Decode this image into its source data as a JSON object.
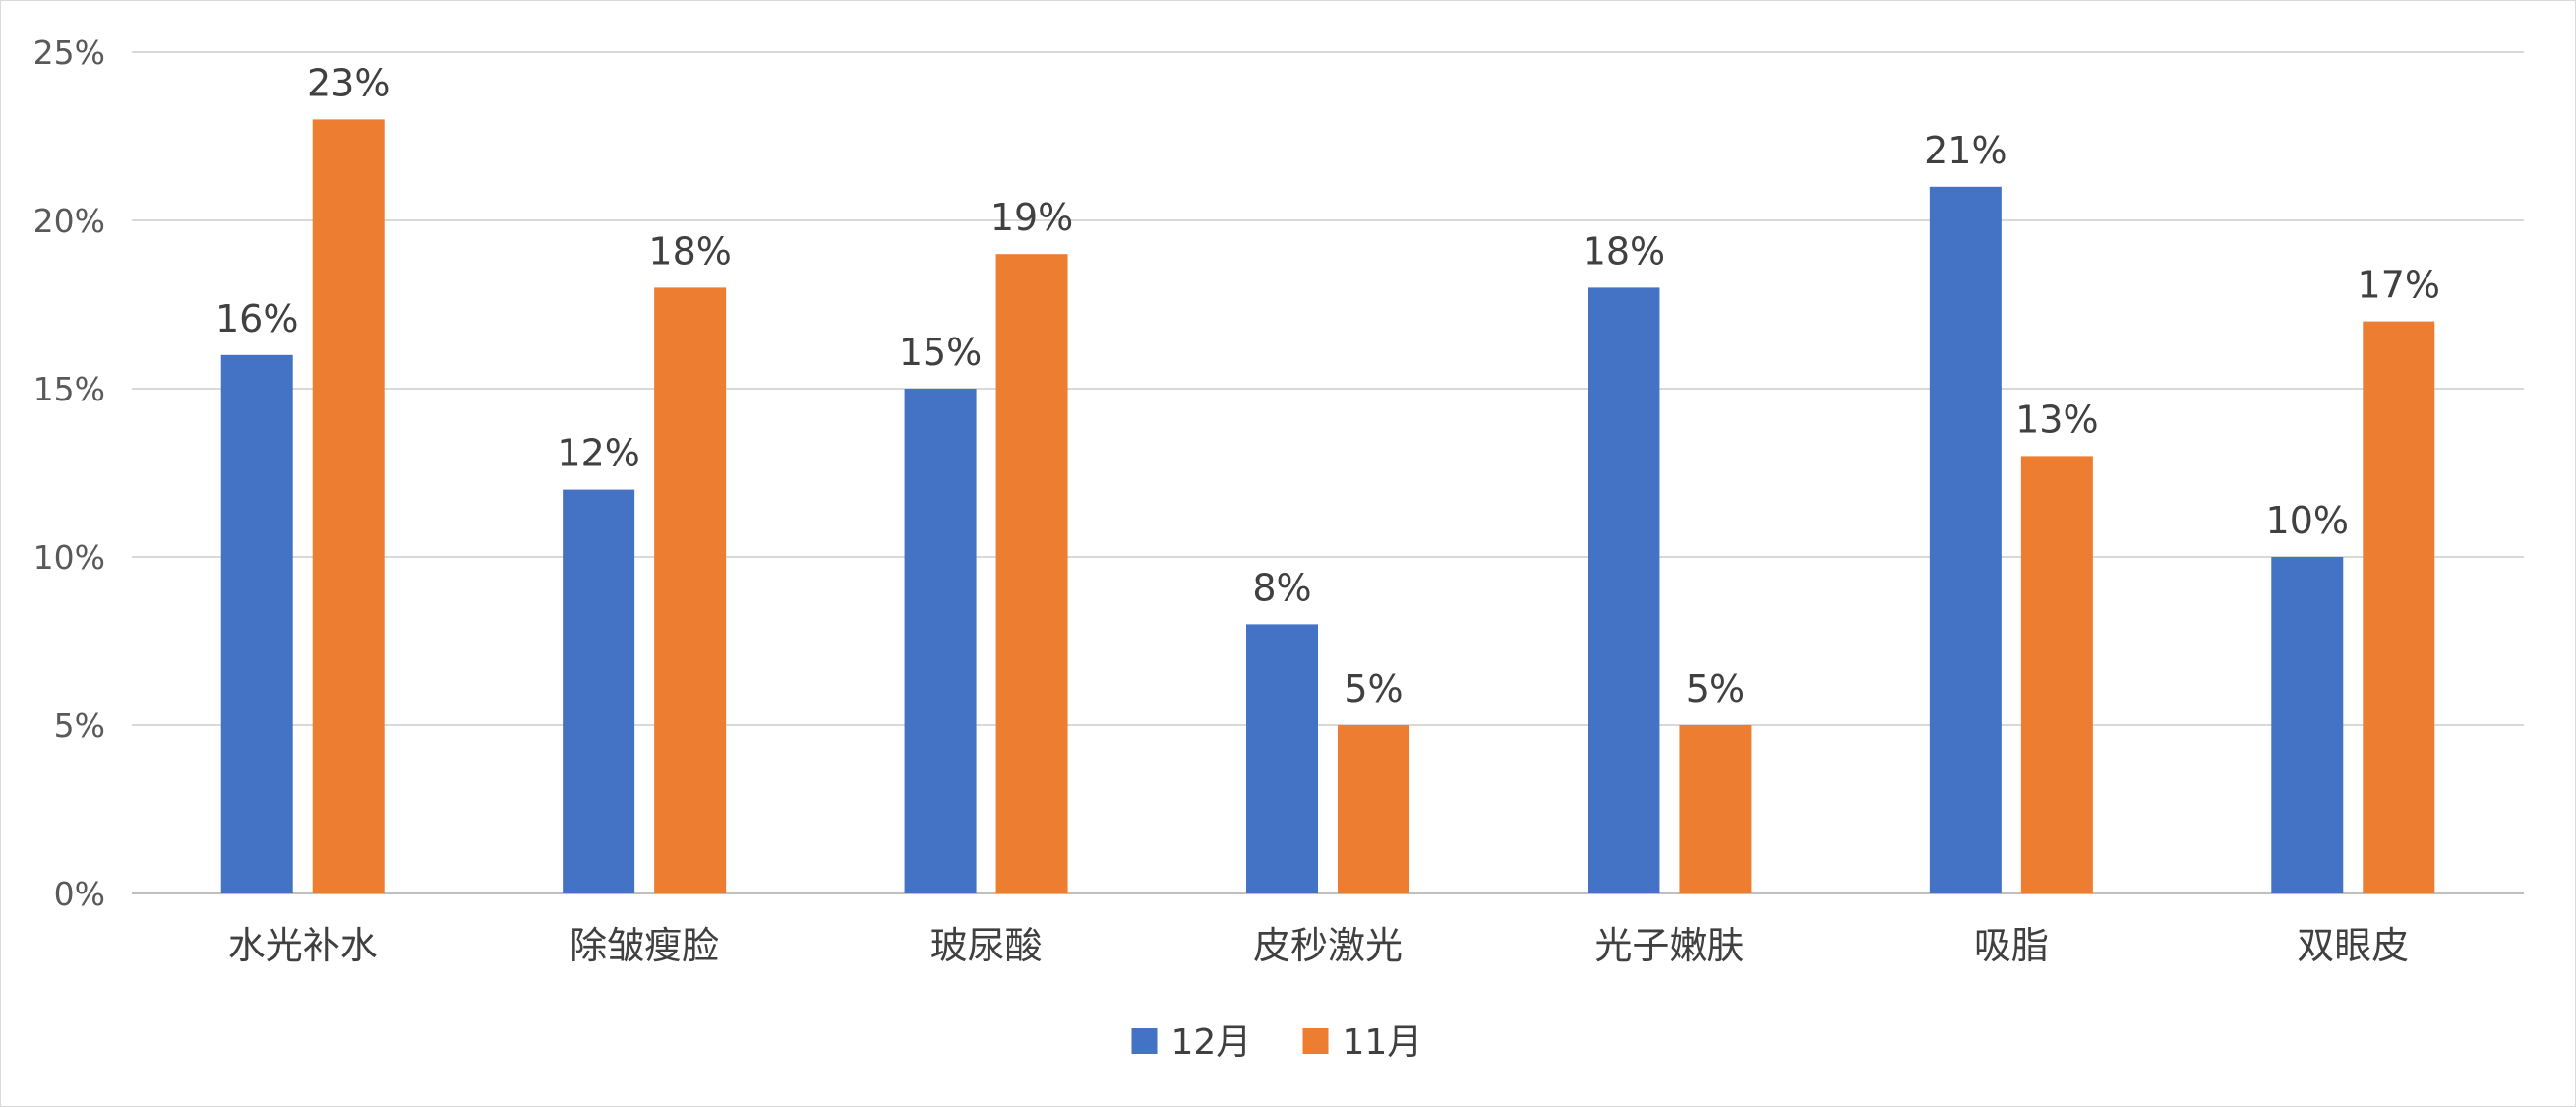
{
  "chart_data": {
    "type": "bar",
    "categories": [
      "水光补水",
      "除皱瘦脸",
      "玻尿酸",
      "皮秒激光",
      "光子嫩肤",
      "吸脂",
      "双眼皮"
    ],
    "series": [
      {
        "name": "12月",
        "values": [
          16,
          12,
          15,
          8,
          18,
          21,
          10
        ],
        "color": "#4472c4"
      },
      {
        "name": "11月",
        "values": [
          23,
          18,
          19,
          5,
          5,
          13,
          17
        ],
        "color": "#ed7d31"
      }
    ],
    "y_ticks": [
      "0%",
      "5%",
      "10%",
      "15%",
      "20%",
      "25%"
    ],
    "ylim": [
      0,
      25
    ],
    "y_unit": "%",
    "grid": true,
    "legend_position": "bottom",
    "title": "",
    "xlabel": "",
    "ylabel": ""
  }
}
